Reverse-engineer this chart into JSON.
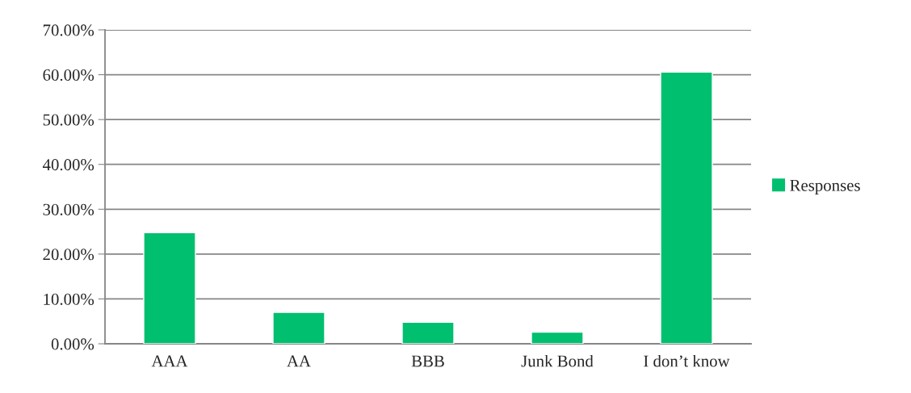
{
  "chart_data": {
    "type": "bar",
    "categories": [
      "AAA",
      "AA",
      "BBB",
      "Junk Bond",
      "I don’t know"
    ],
    "series": [
      {
        "name": "Responses",
        "color": "#00bf6f",
        "values": [
          24.8,
          7.0,
          4.8,
          2.6,
          60.6
        ]
      }
    ],
    "ylim": [
      0,
      70
    ],
    "yticks": [
      {
        "value": 0,
        "label": "0.00%"
      },
      {
        "value": 10,
        "label": "10.00%"
      },
      {
        "value": 20,
        "label": "20.00%"
      },
      {
        "value": 30,
        "label": "30.00%"
      },
      {
        "value": 40,
        "label": "40.00%"
      },
      {
        "value": 50,
        "label": "50.00%"
      },
      {
        "value": 60,
        "label": "60.00%"
      },
      {
        "value": 70,
        "label": "70.00%"
      }
    ],
    "grid": "y",
    "legend": "right"
  }
}
